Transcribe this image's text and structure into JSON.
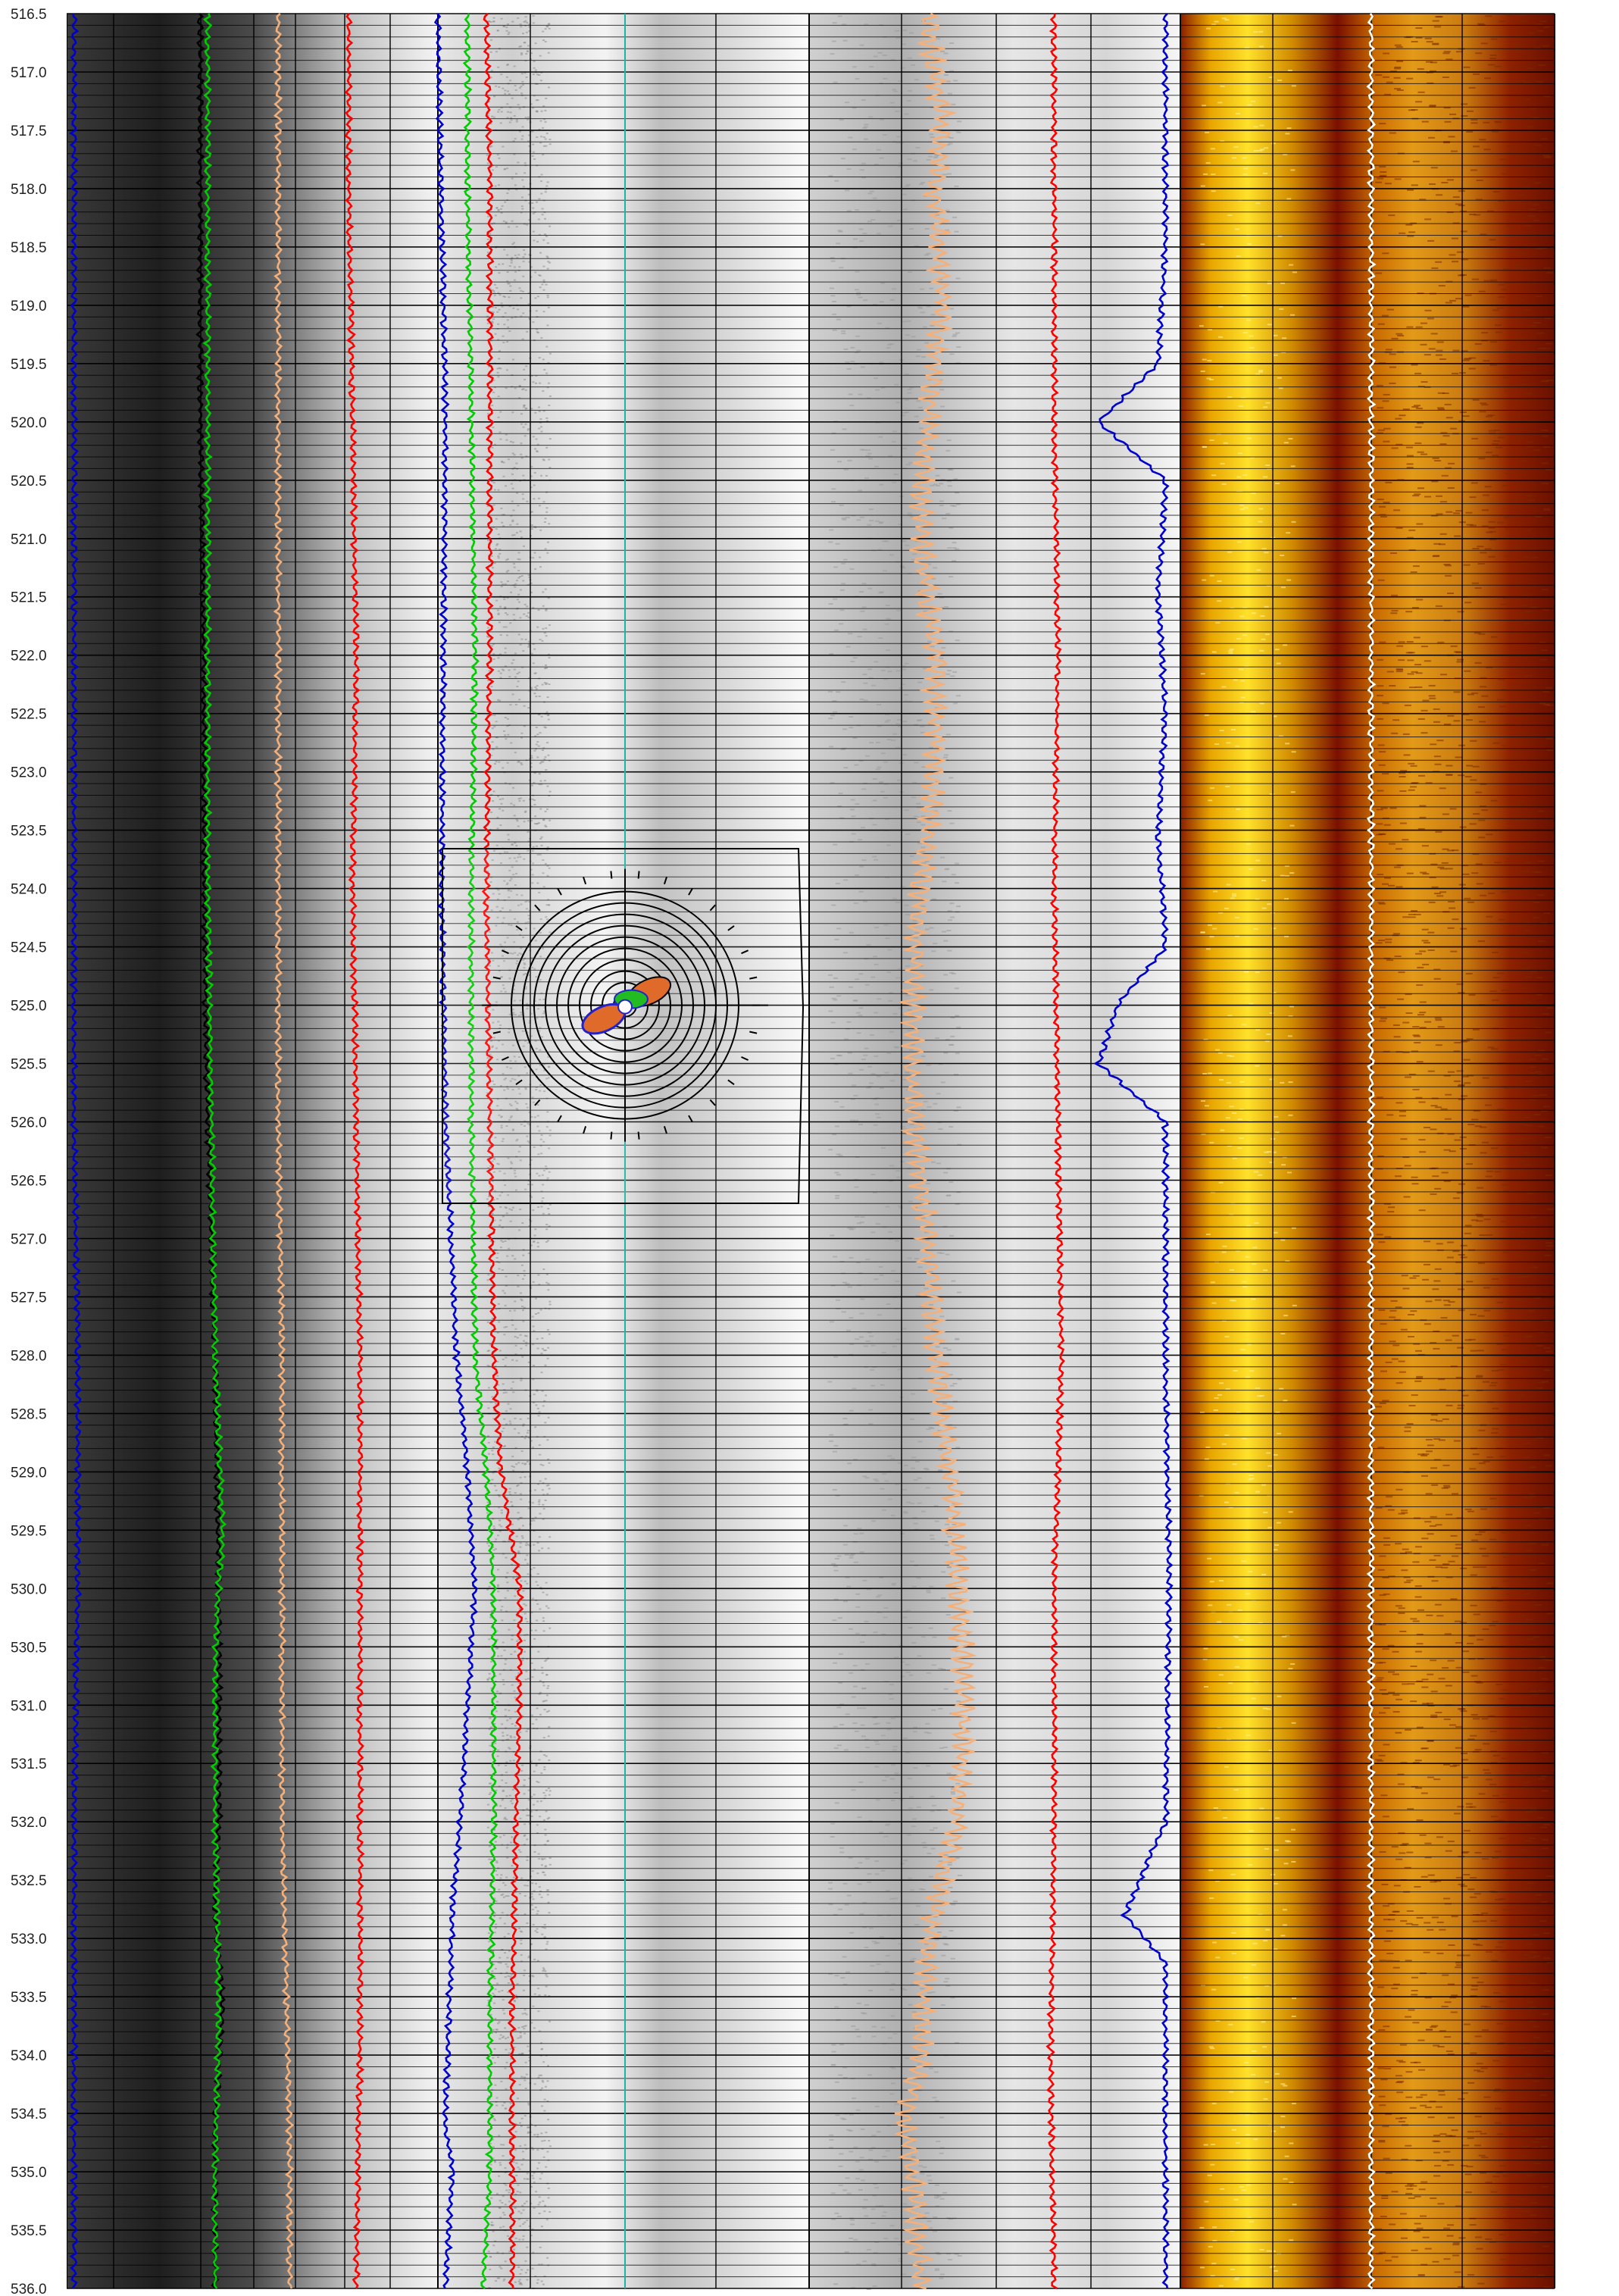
{
  "chart_data": {
    "type": "line",
    "depth_ticks": [
      "516.5",
      "517.0",
      "517.5",
      "518.0",
      "518.5",
      "519.0",
      "519.5",
      "520.0",
      "520.5",
      "521.0",
      "521.5",
      "522.0",
      "522.5",
      "523.0",
      "523.5",
      "524.0",
      "524.5",
      "525.0",
      "525.5",
      "526.0",
      "526.5",
      "527.0",
      "527.5",
      "528.0",
      "528.5",
      "529.0",
      "529.5",
      "530.0",
      "530.5",
      "531.0",
      "531.5",
      "532.0",
      "532.5",
      "533.0",
      "533.5",
      "534.0",
      "534.5",
      "535.0",
      "535.5",
      "536.0"
    ],
    "depth_range": [
      516.5,
      536.0
    ],
    "depth_step": 0.1,
    "grid": true,
    "tracks": [
      {
        "id": "track-1",
        "background": "dark-grayscale-image",
        "series": [
          {
            "color": "#000000",
            "points": [
              [
                516.5,
                0.36
              ],
              [
                518.0,
                0.36
              ],
              [
                520.0,
                0.36
              ],
              [
                522.0,
                0.37
              ],
              [
                524.0,
                0.37
              ],
              [
                526.0,
                0.38
              ],
              [
                528.0,
                0.4
              ],
              [
                530.0,
                0.41
              ],
              [
                532.0,
                0.41
              ],
              [
                532.7,
                0.4
              ],
              [
                533.6,
                0.42
              ],
              [
                534.6,
                0.4
              ],
              [
                536.0,
                0.4
              ]
            ]
          },
          {
            "color": "#00cc00",
            "points": [
              [
                516.5,
                0.38
              ],
              [
                520.0,
                0.38
              ],
              [
                524.0,
                0.38
              ],
              [
                526.0,
                0.39
              ],
              [
                528.0,
                0.4
              ],
              [
                529.5,
                0.42
              ],
              [
                530.5,
                0.4
              ],
              [
                532.0,
                0.4
              ],
              [
                533.6,
                0.41
              ],
              [
                535.0,
                0.4
              ],
              [
                536.0,
                0.4
              ]
            ]
          },
          {
            "color": "#f5b07a",
            "points": [
              [
                516.5,
                0.57
              ],
              [
                520.0,
                0.57
              ],
              [
                524.0,
                0.57
              ],
              [
                526.0,
                0.57
              ],
              [
                528.0,
                0.58
              ],
              [
                530.0,
                0.58
              ],
              [
                532.0,
                0.58
              ],
              [
                534.5,
                0.6
              ],
              [
                536.0,
                0.6
              ]
            ]
          },
          {
            "color": "#ff0000",
            "points": [
              [
                516.5,
                0.76
              ],
              [
                518.0,
                0.76
              ],
              [
                520.0,
                0.77
              ],
              [
                522.0,
                0.78
              ],
              [
                524.0,
                0.77
              ],
              [
                526.0,
                0.78
              ],
              [
                528.0,
                0.79
              ],
              [
                530.0,
                0.79
              ],
              [
                532.0,
                0.79
              ],
              [
                534.0,
                0.79
              ],
              [
                536.0,
                0.78
              ]
            ]
          },
          {
            "color": "#0000cc",
            "points": [
              [
                516.5,
                0.02
              ],
              [
                520.0,
                0.02
              ],
              [
                524.0,
                0.02
              ],
              [
                526.0,
                0.02
              ],
              [
                528.0,
                0.03
              ],
              [
                530.0,
                0.03
              ],
              [
                532.0,
                0.02
              ],
              [
                533.6,
                0.02
              ],
              [
                536.0,
                0.02
              ]
            ]
          }
        ]
      },
      {
        "id": "track-2",
        "background": "light-grayscale-image",
        "series": [
          {
            "color": "#0000cc",
            "points": [
              [
                516.5,
                0.0
              ],
              [
                520.0,
                0.02
              ],
              [
                524.0,
                0.01
              ],
              [
                526.0,
                0.02
              ],
              [
                528.0,
                0.05
              ],
              [
                529.0,
                0.08
              ],
              [
                530.0,
                0.1
              ],
              [
                531.0,
                0.08
              ],
              [
                532.0,
                0.06
              ],
              [
                532.7,
                0.04
              ],
              [
                533.6,
                0.03
              ],
              [
                534.6,
                0.02
              ],
              [
                535.0,
                0.04
              ],
              [
                536.0,
                0.02
              ]
            ]
          },
          {
            "color": "#00cc00",
            "points": [
              [
                516.5,
                0.08
              ],
              [
                518.0,
                0.08
              ],
              [
                520.0,
                0.09
              ],
              [
                522.0,
                0.1
              ],
              [
                524.0,
                0.09
              ],
              [
                526.0,
                0.09
              ],
              [
                528.0,
                0.1
              ],
              [
                529.0,
                0.13
              ],
              [
                530.0,
                0.15
              ],
              [
                531.0,
                0.15
              ],
              [
                532.0,
                0.15
              ],
              [
                533.6,
                0.14
              ],
              [
                535.0,
                0.14
              ],
              [
                536.0,
                0.12
              ]
            ]
          },
          {
            "color": "#ff0000",
            "points": [
              [
                516.5,
                0.13
              ],
              [
                518.0,
                0.14
              ],
              [
                520.0,
                0.14
              ],
              [
                522.0,
                0.14
              ],
              [
                524.0,
                0.13
              ],
              [
                526.0,
                0.14
              ],
              [
                528.0,
                0.15
              ],
              [
                529.0,
                0.17
              ],
              [
                530.0,
                0.22
              ],
              [
                531.0,
                0.22
              ],
              [
                532.0,
                0.21
              ],
              [
                533.6,
                0.2
              ],
              [
                535.0,
                0.2
              ],
              [
                536.0,
                0.2
              ]
            ]
          }
        ]
      },
      {
        "id": "track-3",
        "background": "light-grayscale-image",
        "series": [
          {
            "color": "#f5b07a",
            "points": [
              [
                516.5,
                0.32
              ],
              [
                517.5,
                0.36
              ],
              [
                518.0,
                0.34
              ],
              [
                519.0,
                0.36
              ],
              [
                520.0,
                0.32
              ],
              [
                521.0,
                0.3
              ],
              [
                522.0,
                0.34
              ],
              [
                523.0,
                0.34
              ],
              [
                524.0,
                0.3
              ],
              [
                525.0,
                0.28
              ],
              [
                526.0,
                0.28
              ],
              [
                527.0,
                0.32
              ],
              [
                528.0,
                0.34
              ],
              [
                529.0,
                0.38
              ],
              [
                530.0,
                0.4
              ],
              [
                531.0,
                0.42
              ],
              [
                532.0,
                0.4
              ],
              [
                533.0,
                0.32
              ],
              [
                534.0,
                0.3
              ],
              [
                534.6,
                0.26
              ],
              [
                535.0,
                0.28
              ],
              [
                536.0,
                0.3
              ]
            ]
          },
          {
            "color": "#ff0000",
            "points": [
              [
                516.5,
                0.66
              ],
              [
                518.0,
                0.66
              ],
              [
                520.0,
                0.66
              ],
              [
                522.0,
                0.67
              ],
              [
                524.0,
                0.66
              ],
              [
                526.0,
                0.67
              ],
              [
                528.0,
                0.68
              ],
              [
                530.0,
                0.66
              ],
              [
                532.0,
                0.66
              ],
              [
                534.0,
                0.65
              ],
              [
                536.0,
                0.66
              ]
            ]
          },
          {
            "color": "#0000cc",
            "points": [
              [
                516.5,
                0.96
              ],
              [
                518.5,
                0.96
              ],
              [
                519.5,
                0.94
              ],
              [
                520.0,
                0.78
              ],
              [
                520.5,
                0.96
              ],
              [
                521.5,
                0.94
              ],
              [
                522.5,
                0.96
              ],
              [
                523.5,
                0.94
              ],
              [
                524.5,
                0.96
              ],
              [
                525.0,
                0.83
              ],
              [
                525.5,
                0.78
              ],
              [
                526.0,
                0.96
              ],
              [
                528.0,
                0.96
              ],
              [
                530.0,
                0.97
              ],
              [
                532.0,
                0.96
              ],
              [
                532.8,
                0.85
              ],
              [
                533.2,
                0.96
              ],
              [
                536.0,
                0.96
              ]
            ]
          }
        ]
      },
      {
        "id": "track-4",
        "background": "amber-color-image",
        "series": [
          {
            "color": "#ffffff",
            "points": [
              [
                516.5,
                0.51
              ],
              [
                518.0,
                0.51
              ],
              [
                520.0,
                0.51
              ],
              [
                522.0,
                0.51
              ],
              [
                524.0,
                0.51
              ],
              [
                526.0,
                0.51
              ],
              [
                528.0,
                0.51
              ],
              [
                530.0,
                0.51
              ],
              [
                532.0,
                0.51
              ],
              [
                534.0,
                0.51
              ],
              [
                536.0,
                0.51
              ]
            ]
          }
        ]
      }
    ],
    "stereonet": {
      "center_depth": 525.0,
      "rings": 10,
      "pole_colors": [
        "#e06a2a",
        "#22bb22",
        "#2222cc"
      ]
    }
  }
}
